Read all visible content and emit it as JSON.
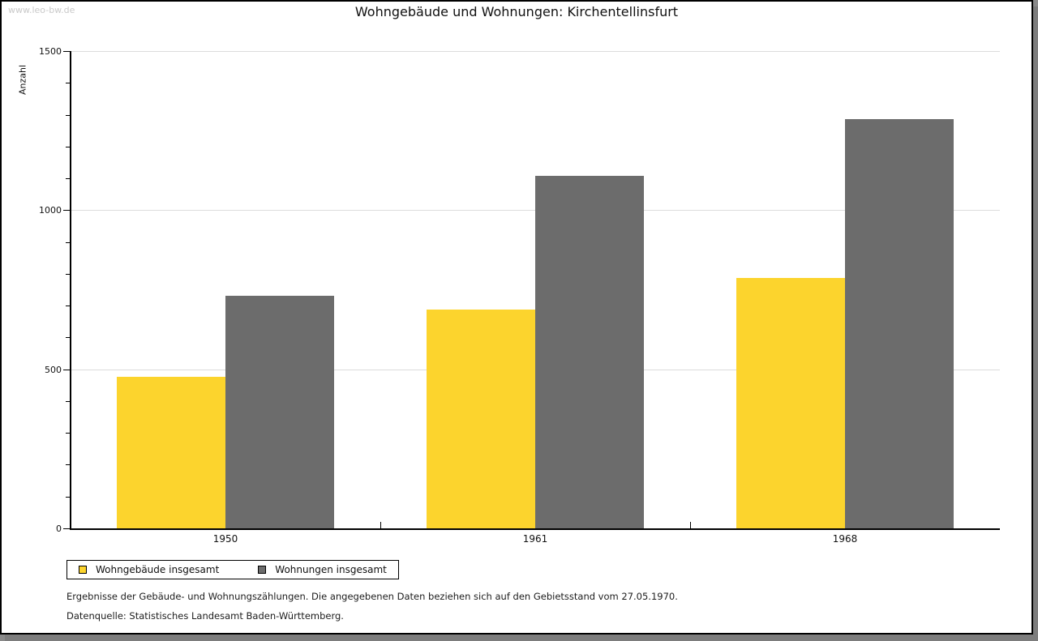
{
  "watermark": "www.leo-bw.de",
  "title": "Wohngebäude und Wohnungen: Kirchentellinsfurt",
  "chart_data": {
    "type": "bar",
    "title": "Wohngebäude und Wohnungen: Kirchentellinsfurt",
    "categories": [
      "1950",
      "1961",
      "1968"
    ],
    "series": [
      {
        "name": "Wohngebäude insgesamt",
        "key": "wohngebaeude",
        "color": "#FCD42D",
        "values": [
          477,
          687,
          788
        ]
      },
      {
        "name": "Wohnungen insgesamt",
        "key": "wohnungen",
        "color": "#6C6C6C",
        "values": [
          730,
          1109,
          1287
        ]
      }
    ],
    "ylabel": "Anzahl",
    "ylim": [
      0,
      1500
    ],
    "yticks_labeled": [
      0,
      500,
      1000,
      1500
    ],
    "ytick_minor_step": 100,
    "grid": "horizontal-major",
    "legend_position": "bottom-left",
    "gridline_color": "#dcdcdc"
  },
  "footnotes": [
    "Ergebnisse der Gebäude- und Wohnungszählungen. Die angegebenen Daten beziehen sich auf den Gebietsstand vom 27.05.1970.",
    "Datenquelle: Statistisches Landesamt Baden-Württemberg."
  ]
}
